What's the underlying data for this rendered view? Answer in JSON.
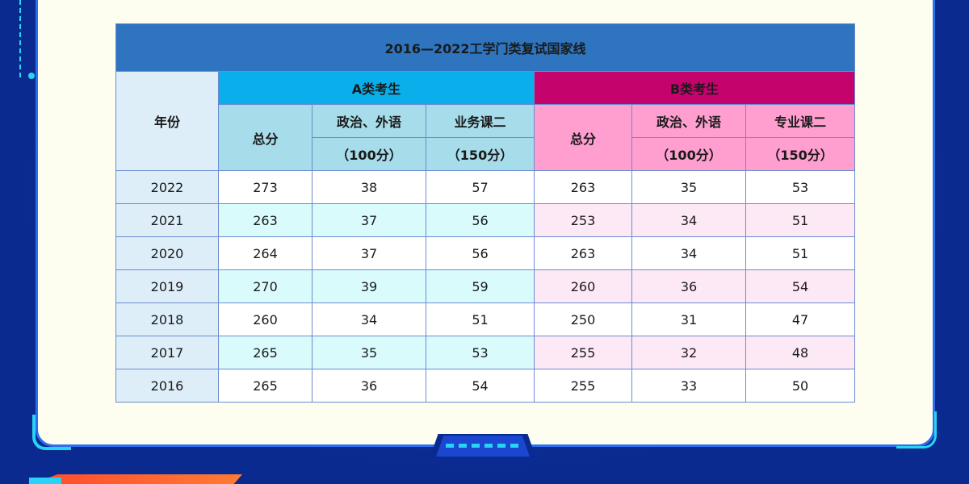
{
  "table": {
    "title": "2016—2022工学门类复试国家线",
    "year_header": "年份",
    "group_a": "A类考生",
    "group_b": "B类考生",
    "a_cols": {
      "total": "总分",
      "politics": "政治、外语",
      "politics_score": "（100分）",
      "course2": "业务课二",
      "course2_score": "（150分）"
    },
    "b_cols": {
      "total": "总分",
      "politics": "政治、外语",
      "politics_score": "（100分）",
      "course2": "专业课二",
      "course2_score": "（150分）"
    },
    "rows": [
      {
        "year": "2022",
        "a_total": "273",
        "a_pol": "38",
        "a_c2": "57",
        "b_total": "263",
        "b_pol": "35",
        "b_c2": "53"
      },
      {
        "year": "2021",
        "a_total": "263",
        "a_pol": "37",
        "a_c2": "56",
        "b_total": "253",
        "b_pol": "34",
        "b_c2": "51"
      },
      {
        "year": "2020",
        "a_total": "264",
        "a_pol": "37",
        "a_c2": "56",
        "b_total": "263",
        "b_pol": "34",
        "b_c2": "51"
      },
      {
        "year": "2019",
        "a_total": "270",
        "a_pol": "39",
        "a_c2": "59",
        "b_total": "260",
        "b_pol": "36",
        "b_c2": "54"
      },
      {
        "year": "2018",
        "a_total": "260",
        "a_pol": "34",
        "a_c2": "51",
        "b_total": "250",
        "b_pol": "31",
        "b_c2": "47"
      },
      {
        "year": "2017",
        "a_total": "265",
        "a_pol": "35",
        "a_c2": "53",
        "b_total": "255",
        "b_pol": "32",
        "b_c2": "48"
      },
      {
        "year": "2016",
        "a_total": "265",
        "a_pol": "36",
        "a_c2": "54",
        "b_total": "255",
        "b_pol": "33",
        "b_c2": "50"
      }
    ]
  },
  "colors": {
    "background": "#0b2a8f",
    "panel": "#fdfdf0",
    "title_bar": "#2f74bf",
    "group_a": "#0aaeea",
    "group_b": "#c4036d",
    "accent": "#29d3f5"
  }
}
